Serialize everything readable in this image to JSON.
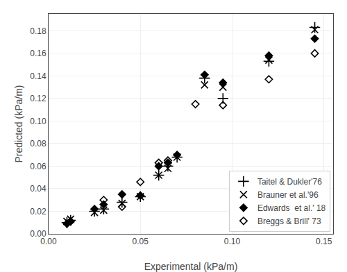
{
  "chart_data": {
    "type": "scatter",
    "xlabel": "Experimental (kPa/m)",
    "ylabel": "Predicted (kPa/m)",
    "xlim": [
      0.0,
      0.155
    ],
    "ylim": [
      0.0,
      0.195
    ],
    "xticks": [
      {
        "value": 0.0,
        "label": "0.00"
      },
      0.05,
      {
        "value": 0.1,
        "label": "0.10"
      },
      0.15
    ],
    "yticks": [
      {
        "value": 0.0,
        "label": "0.00"
      },
      0.02,
      0.04,
      0.06,
      0.08,
      {
        "value": 0.1,
        "label": "0.10"
      },
      0.12,
      0.14,
      0.16,
      0.18
    ],
    "grid": true,
    "legend": "lower right",
    "series": [
      {
        "name": "Taitel & Dukler'76",
        "marker": "plus",
        "color": "#000000",
        "x": [
          0.01,
          0.012,
          0.025,
          0.03,
          0.04,
          0.05,
          0.06,
          0.065,
          0.07,
          0.085,
          0.095,
          0.12,
          0.145
        ],
        "values": [
          0.01,
          0.012,
          0.02,
          0.022,
          0.028,
          0.033,
          0.052,
          0.06,
          0.068,
          0.138,
          0.12,
          0.153,
          0.183
        ]
      },
      {
        "name": "Brauner et al.'96",
        "marker": "x",
        "color": "#000000",
        "x": [
          0.01,
          0.012,
          0.025,
          0.03,
          0.04,
          0.05,
          0.06,
          0.065,
          0.07,
          0.085,
          0.095,
          0.12,
          0.145
        ],
        "values": [
          0.011,
          0.013,
          0.019,
          0.021,
          0.027,
          0.033,
          0.052,
          0.058,
          0.068,
          0.132,
          0.13,
          0.154,
          0.181
        ]
      },
      {
        "name": "Edwards  et al.' 18",
        "marker": "diamond",
        "color": "#000000",
        "x": [
          0.01,
          0.012,
          0.025,
          0.03,
          0.04,
          0.05,
          0.06,
          0.065,
          0.07,
          0.085,
          0.095,
          0.12,
          0.145
        ],
        "values": [
          0.009,
          0.011,
          0.022,
          0.026,
          0.035,
          0.034,
          0.06,
          0.063,
          0.07,
          0.141,
          0.134,
          0.158,
          0.173
        ]
      },
      {
        "name": "Breggs & Brill' 73",
        "marker": "diamond-open",
        "color": "#000000",
        "x": [
          0.03,
          0.04,
          0.05,
          0.06,
          0.065,
          0.08,
          0.095,
          0.12,
          0.145
        ],
        "values": [
          0.03,
          0.024,
          0.046,
          0.063,
          0.065,
          0.115,
          0.114,
          0.137,
          0.16
        ]
      }
    ]
  }
}
